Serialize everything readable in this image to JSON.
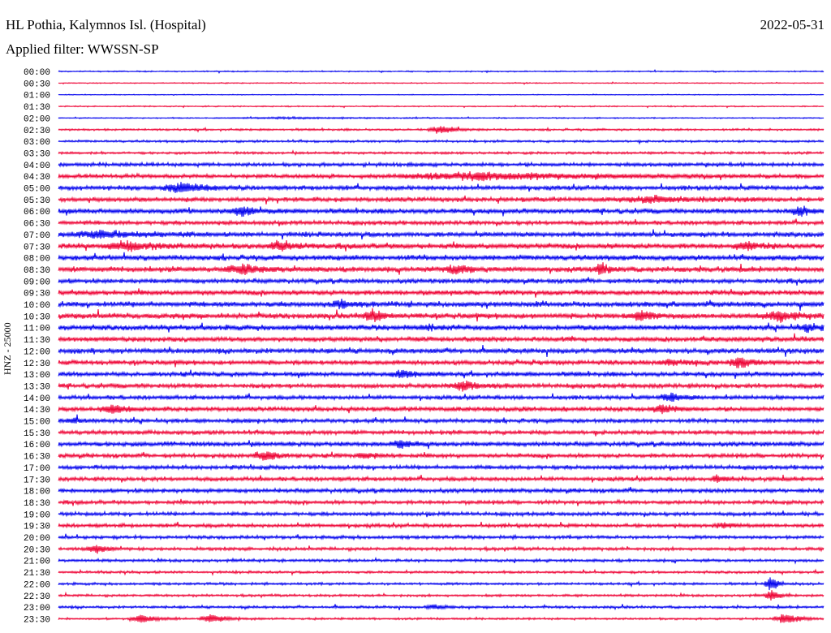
{
  "header": {
    "station": "HL Pothia, Kalymnos Isl. (Hospital)",
    "filter_label": "Applied filter:",
    "filter_value": "WWSSN-SP",
    "date": "2022-05-31"
  },
  "chart_data": {
    "type": "line",
    "title": "HL Pothia, Kalymnos Isl. (Hospital)",
    "subtitle": "Applied filter: WWSSN-SP",
    "date": "2022-05-31",
    "ylabel": "HNZ - 25000",
    "row_labels": [
      "00:00",
      "00:30",
      "01:00",
      "01:30",
      "02:00",
      "02:30",
      "03:00",
      "03:30",
      "04:00",
      "04:30",
      "05:00",
      "05:30",
      "06:00",
      "06:30",
      "07:00",
      "07:30",
      "08:00",
      "08:30",
      "09:00",
      "09:30",
      "10:00",
      "10:30",
      "11:00",
      "11:30",
      "12:00",
      "12:30",
      "13:00",
      "13:30",
      "14:00",
      "14:30",
      "15:00",
      "15:30",
      "16:00",
      "16:30",
      "17:00",
      "17:30",
      "18:00",
      "18:30",
      "19:00",
      "19:30",
      "20:00",
      "20:30",
      "21:00",
      "21:30",
      "22:00",
      "22:30",
      "23:00",
      "23:30"
    ],
    "series_colors": {
      "even_rows": "#0000ee",
      "odd_rows": "#ee0033"
    },
    "noise_level": [
      0.3,
      0.25,
      0.2,
      0.3,
      0.3,
      0.5,
      0.55,
      0.6,
      0.9,
      1.0,
      1.1,
      1.1,
      1.2,
      1.0,
      1.2,
      1.3,
      1.3,
      1.3,
      1.1,
      1.2,
      1.3,
      1.3,
      1.3,
      1.2,
      1.2,
      1.1,
      1.1,
      1.1,
      1.0,
      1.1,
      1.0,
      1.0,
      1.1,
      1.0,
      1.0,
      1.0,
      1.0,
      0.9,
      0.9,
      0.9,
      0.8,
      0.8,
      0.7,
      0.6,
      0.6,
      0.6,
      0.6,
      0.5
    ],
    "events": [
      {
        "row": 4,
        "position": 0.3,
        "width": 0.1,
        "amplitude": 0.4
      },
      {
        "row": 5,
        "position": 0.5,
        "width": 0.02,
        "amplitude": 2.5
      },
      {
        "row": 9,
        "position": 0.55,
        "width": 0.13,
        "amplitude": 2.2
      },
      {
        "row": 10,
        "position": 0.16,
        "width": 0.03,
        "amplitude": 3.0
      },
      {
        "row": 11,
        "position": 0.78,
        "width": 0.06,
        "amplitude": 1.6
      },
      {
        "row": 12,
        "position": 0.24,
        "width": 0.02,
        "amplitude": 3.0
      },
      {
        "row": 12,
        "position": 0.97,
        "width": 0.02,
        "amplitude": 2.5
      },
      {
        "row": 14,
        "position": 0.06,
        "width": 0.05,
        "amplitude": 2.0
      },
      {
        "row": 15,
        "position": 0.09,
        "width": 0.04,
        "amplitude": 2.2
      },
      {
        "row": 15,
        "position": 0.29,
        "width": 0.02,
        "amplitude": 3.0
      },
      {
        "row": 15,
        "position": 0.9,
        "width": 0.02,
        "amplitude": 2.0
      },
      {
        "row": 17,
        "position": 0.24,
        "width": 0.03,
        "amplitude": 2.5
      },
      {
        "row": 17,
        "position": 0.52,
        "width": 0.02,
        "amplitude": 2.4
      },
      {
        "row": 17,
        "position": 0.71,
        "width": 0.01,
        "amplitude": 3.5
      },
      {
        "row": 20,
        "position": 0.37,
        "width": 0.015,
        "amplitude": 2.4
      },
      {
        "row": 21,
        "position": 0.41,
        "width": 0.015,
        "amplitude": 3.5
      },
      {
        "row": 21,
        "position": 0.76,
        "width": 0.02,
        "amplitude": 2.5
      },
      {
        "row": 21,
        "position": 0.94,
        "width": 0.03,
        "amplitude": 2.6
      },
      {
        "row": 22,
        "position": 0.48,
        "width": 0.015,
        "amplitude": 1.5
      },
      {
        "row": 22,
        "position": 0.98,
        "width": 0.02,
        "amplitude": 2.0
      },
      {
        "row": 25,
        "position": 0.8,
        "width": 0.02,
        "amplitude": 1.6
      },
      {
        "row": 25,
        "position": 0.89,
        "width": 0.02,
        "amplitude": 3.5
      },
      {
        "row": 26,
        "position": 0.45,
        "width": 0.02,
        "amplitude": 2.0
      },
      {
        "row": 27,
        "position": 0.53,
        "width": 0.025,
        "amplitude": 2.3
      },
      {
        "row": 28,
        "position": 0.8,
        "width": 0.02,
        "amplitude": 2.5
      },
      {
        "row": 29,
        "position": 0.07,
        "width": 0.02,
        "amplitude": 2.4
      },
      {
        "row": 29,
        "position": 0.79,
        "width": 0.02,
        "amplitude": 2.5
      },
      {
        "row": 30,
        "position": 0.02,
        "width": 0.01,
        "amplitude": 1.6
      },
      {
        "row": 32,
        "position": 0.45,
        "width": 0.02,
        "amplitude": 2.2
      },
      {
        "row": 33,
        "position": 0.27,
        "width": 0.02,
        "amplitude": 2.8
      },
      {
        "row": 33,
        "position": 0.4,
        "width": 0.015,
        "amplitude": 1.8
      },
      {
        "row": 35,
        "position": 0.86,
        "width": 0.01,
        "amplitude": 2.8
      },
      {
        "row": 39,
        "position": 0.87,
        "width": 0.02,
        "amplitude": 1.4
      },
      {
        "row": 41,
        "position": 0.05,
        "width": 0.015,
        "amplitude": 2.6
      },
      {
        "row": 44,
        "position": 0.93,
        "width": 0.01,
        "amplitude": 4.5
      },
      {
        "row": 45,
        "position": 0.93,
        "width": 0.01,
        "amplitude": 3.5
      },
      {
        "row": 46,
        "position": 0.49,
        "width": 0.015,
        "amplitude": 1.5
      },
      {
        "row": 47,
        "position": 0.11,
        "width": 0.02,
        "amplitude": 2.6
      },
      {
        "row": 47,
        "position": 0.2,
        "width": 0.02,
        "amplitude": 2.6
      },
      {
        "row": 47,
        "position": 0.95,
        "width": 0.02,
        "amplitude": 3.2
      }
    ]
  }
}
